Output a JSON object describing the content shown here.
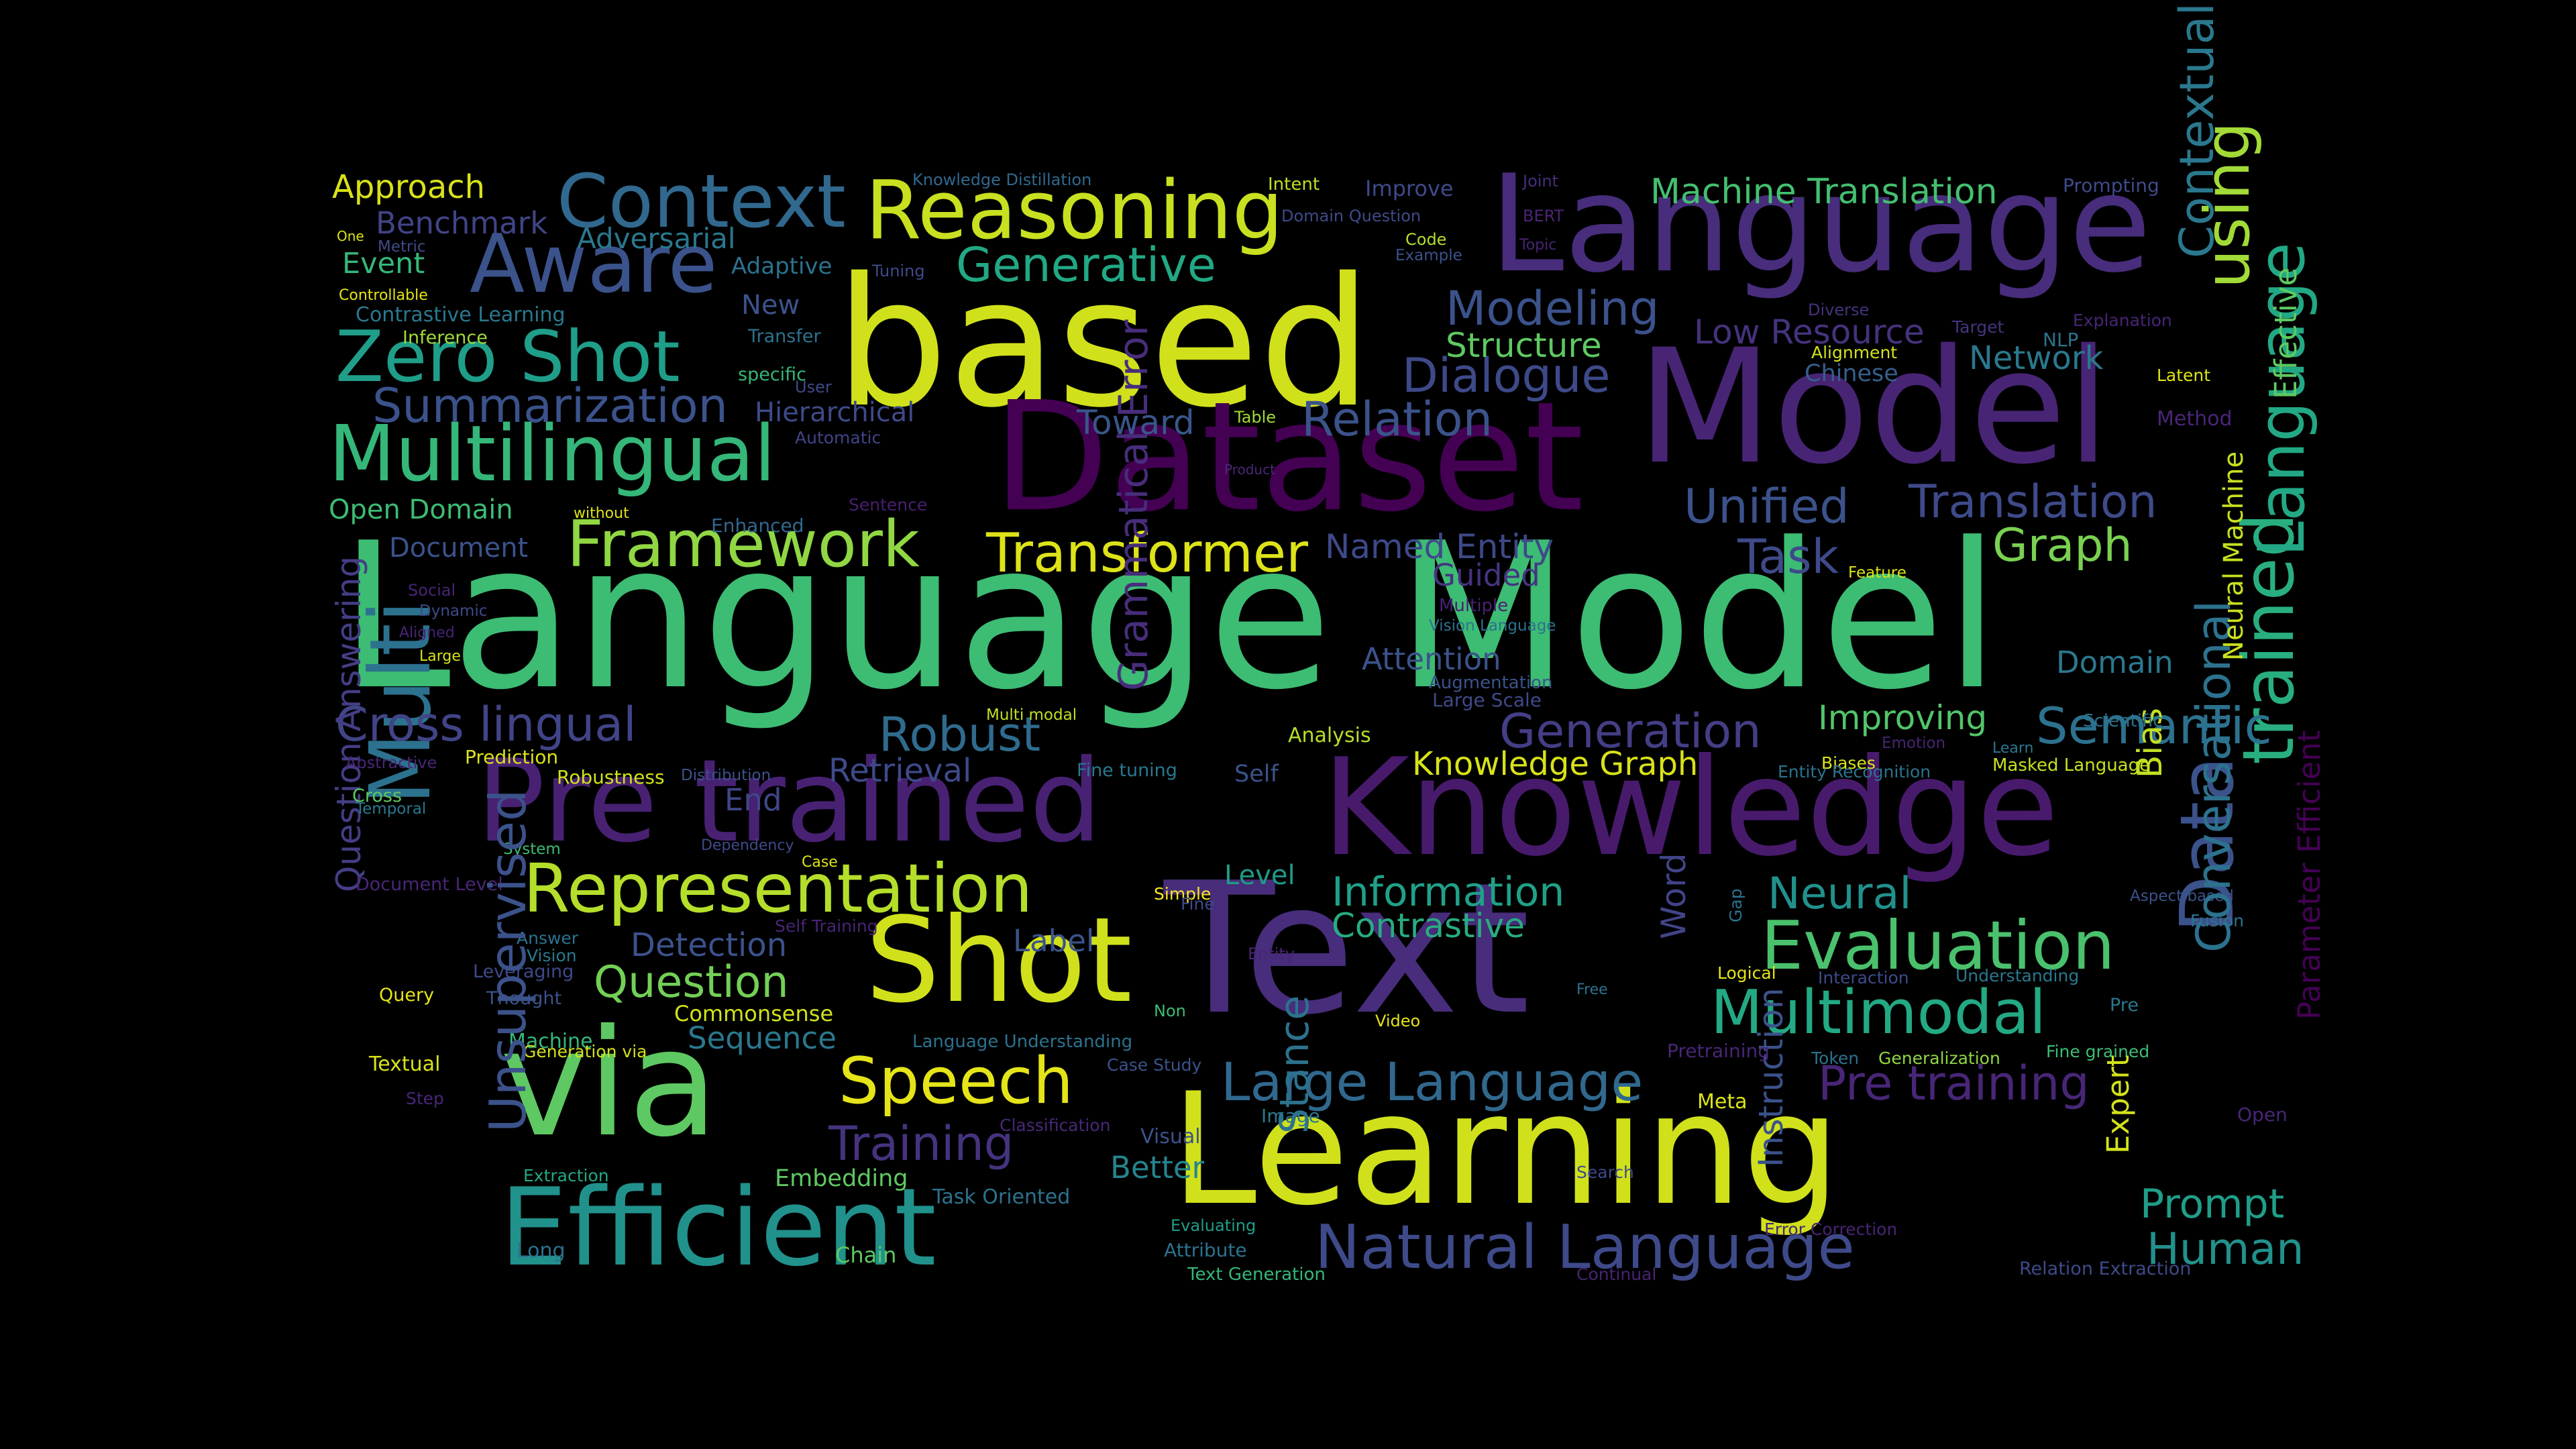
{
  "words": [
    {
      "text": "Language Model",
      "color": "#3dbc74"
    },
    {
      "text": "based",
      "color": "#d0e11c"
    },
    {
      "text": "Text",
      "color": "#472d7b"
    },
    {
      "text": "Learning",
      "color": "#d0e11c"
    },
    {
      "text": "Dataset",
      "color": "#440154"
    },
    {
      "text": "Model",
      "color": "#482475"
    },
    {
      "text": "Language",
      "color": "#472d7b"
    },
    {
      "text": "Knowledge",
      "color": "#481a6c"
    },
    {
      "text": "Pre trained",
      "color": "#482173"
    },
    {
      "text": "via",
      "color": "#5ec962"
    },
    {
      "text": "Multi",
      "color": "#2c728e"
    },
    {
      "text": "Shot",
      "color": "#d0e11c"
    },
    {
      "text": "Efficient",
      "color": "#21918c"
    },
    {
      "text": "Reasoning",
      "color": "#c8e020"
    },
    {
      "text": "Context",
      "color": "#31688e"
    },
    {
      "text": "Aware",
      "color": "#3b528b"
    },
    {
      "text": "Zero Shot",
      "color": "#1f9e89"
    },
    {
      "text": "Multilingual",
      "color": "#35b779"
    },
    {
      "text": "Summarization",
      "color": "#3b528b"
    },
    {
      "text": "Representation",
      "color": "#b5de2b"
    },
    {
      "text": "Framework",
      "color": "#90d743"
    },
    {
      "text": "Transformer",
      "color": "#dde318"
    },
    {
      "text": "Evaluation",
      "color": "#4ac16d"
    },
    {
      "text": "Multimodal",
      "color": "#23a983"
    },
    {
      "text": "Natural Language",
      "color": "#3e4a89"
    },
    {
      "text": "Large Language",
      "color": "#31688e"
    },
    {
      "text": "Speech",
      "color": "#e5e419"
    },
    {
      "text": "Data",
      "color": "#3b528b"
    },
    {
      "text": "trained",
      "color": "#29af7f"
    },
    {
      "text": "Language",
      "color": "#22a884"
    },
    {
      "text": "using",
      "color": "#a2da37"
    },
    {
      "text": "Generative",
      "color": "#22a884"
    },
    {
      "text": "Modeling",
      "color": "#3b528b"
    },
    {
      "text": "Dialogue",
      "color": "#3e4989"
    },
    {
      "text": "Relation",
      "color": "#3b528b"
    },
    {
      "text": "Toward",
      "color": "#39568c"
    },
    {
      "text": "Structure",
      "color": "#5ec962"
    },
    {
      "text": "Low Resource",
      "color": "#46327e"
    },
    {
      "text": "Machine Translation",
      "color": "#44bf70"
    },
    {
      "text": "Network",
      "color": "#2a788e"
    },
    {
      "text": "Chinese",
      "color": "#355f8d"
    },
    {
      "text": "Unified",
      "color": "#3b528b"
    },
    {
      "text": "Translation",
      "color": "#3e4a89"
    },
    {
      "text": "Task",
      "color": "#3e4a89"
    },
    {
      "text": "Graph",
      "color": "#7ad151"
    },
    {
      "text": "Named Entity",
      "color": "#3e4989"
    },
    {
      "text": "Guided",
      "color": "#46337f"
    },
    {
      "text": "Semantic",
      "color": "#2c728e"
    },
    {
      "text": "Improving",
      "color": "#52c569"
    },
    {
      "text": "Generation",
      "color": "#433e85"
    },
    {
      "text": "Knowledge Graph",
      "color": "#d8e219"
    },
    {
      "text": "Domain",
      "color": "#2a788e"
    },
    {
      "text": "Bias",
      "color": "#c2df23"
    },
    {
      "text": "Cross lingual",
      "color": "#414487"
    },
    {
      "text": "Robust",
      "color": "#2f6b8e"
    },
    {
      "text": "Retrieval",
      "color": "#3e4a89"
    },
    {
      "text": "End",
      "color": "#3f4788"
    },
    {
      "text": "Information",
      "color": "#1fa188"
    },
    {
      "text": "Contrastive",
      "color": "#27ad81"
    },
    {
      "text": "Neural",
      "color": "#21918c"
    },
    {
      "text": "Word",
      "color": "#414487"
    },
    {
      "text": "Level",
      "color": "#1f9a8a"
    },
    {
      "text": "Question",
      "color": "#73d056"
    },
    {
      "text": "Detection",
      "color": "#3b528b"
    },
    {
      "text": "Label",
      "color": "#3b528b"
    },
    {
      "text": "Commonsense",
      "color": "#d2e21b"
    },
    {
      "text": "Sequence",
      "color": "#2a788e"
    },
    {
      "text": "Training",
      "color": "#46337f"
    },
    {
      "text": "Better",
      "color": "#25848e"
    },
    {
      "text": "Embedding",
      "color": "#5ec962"
    },
    {
      "text": "Task Oriented",
      "color": "#2c728e"
    },
    {
      "text": "Pre training",
      "color": "#482677"
    },
    {
      "text": "Prompt",
      "color": "#1f9e89"
    },
    {
      "text": "Human",
      "color": "#21918c"
    },
    {
      "text": "Question Answering",
      "color": "#433e85"
    },
    {
      "text": "Approach",
      "color": "#d8e219"
    },
    {
      "text": "Benchmark",
      "color": "#414487"
    },
    {
      "text": "Event",
      "color": "#35b779"
    },
    {
      "text": "Adversarial",
      "color": "#2a788e"
    },
    {
      "text": "Adaptive",
      "color": "#2c728e"
    },
    {
      "text": "Hierarchical",
      "color": "#3e4a89"
    },
    {
      "text": "Open Domain",
      "color": "#3dbc74"
    },
    {
      "text": "Document",
      "color": "#3b528b"
    },
    {
      "text": "Attention",
      "color": "#3b528b"
    },
    {
      "text": "New",
      "color": "#3b528b"
    },
    {
      "text": "Knowledge Distillation",
      "color": "#31688e"
    },
    {
      "text": "Intent",
      "color": "#c2df23"
    },
    {
      "text": "Improve",
      "color": "#3e4a89"
    },
    {
      "text": "Joint",
      "color": "#472d7b"
    },
    {
      "text": "Prompting",
      "color": "#3e4a89"
    },
    {
      "text": "Contextual",
      "color": "#2a788e"
    },
    {
      "text": "Domain Question",
      "color": "#3e4a89"
    },
    {
      "text": "Code",
      "color": "#b5de2b"
    },
    {
      "text": "Example",
      "color": "#3b528b"
    },
    {
      "text": "BERT",
      "color": "#482677"
    },
    {
      "text": "Topic",
      "color": "#482475"
    },
    {
      "text": "Tuning",
      "color": "#3e4a89"
    },
    {
      "text": "Controllable",
      "color": "#e5e419"
    },
    {
      "text": "Contrastive Learning",
      "color": "#2a788e"
    },
    {
      "text": "Inference",
      "color": "#a2da37"
    },
    {
      "text": "Transfer",
      "color": "#2c728e"
    },
    {
      "text": "specific",
      "color": "#35b779"
    },
    {
      "text": "User",
      "color": "#3e4a89"
    },
    {
      "text": "Automatic",
      "color": "#414487"
    },
    {
      "text": "Sentence",
      "color": "#481f70"
    },
    {
      "text": "without",
      "color": "#dde318"
    },
    {
      "text": "Enhanced",
      "color": "#31688e"
    },
    {
      "text": "Table",
      "color": "#a2da37"
    },
    {
      "text": "Product",
      "color": "#482878"
    },
    {
      "text": "Social",
      "color": "#482475"
    },
    {
      "text": "Dynamic",
      "color": "#3e4a89"
    },
    {
      "text": "Aligned",
      "color": "#482475"
    },
    {
      "text": "Large",
      "color": "#d8e219"
    },
    {
      "text": "Multiple",
      "color": "#482173"
    },
    {
      "text": "Vision Language",
      "color": "#2c728e"
    },
    {
      "text": "Augmentation",
      "color": "#3b528b"
    },
    {
      "text": "Large Scale",
      "color": "#3e4a89"
    },
    {
      "text": "Grammatical Error",
      "color": "#472d7b"
    },
    {
      "text": "Multi modal",
      "color": "#c2df23"
    },
    {
      "text": "Analysis",
      "color": "#b5de2b"
    },
    {
      "text": "Abstractive",
      "color": "#482677"
    },
    {
      "text": "Prediction",
      "color": "#dde318"
    },
    {
      "text": "Robustness",
      "color": "#d2e21b"
    },
    {
      "text": "Distribution",
      "color": "#3b528b"
    },
    {
      "text": "Fine tuning",
      "color": "#2a788e"
    },
    {
      "text": "Self",
      "color": "#3b528b"
    },
    {
      "text": "Cross",
      "color": "#5ec962"
    },
    {
      "text": "Temporal",
      "color": "#2a788e"
    },
    {
      "text": "System",
      "color": "#3dbc74"
    },
    {
      "text": "Dependency",
      "color": "#3e4a89"
    },
    {
      "text": "Case",
      "color": "#dde318"
    },
    {
      "text": "Document Level",
      "color": "#482677"
    },
    {
      "text": "Self Training",
      "color": "#482475"
    },
    {
      "text": "Answer",
      "color": "#2c728e"
    },
    {
      "text": "Vision",
      "color": "#2a788e"
    },
    {
      "text": "Leveraging",
      "color": "#3e4a89"
    },
    {
      "text": "Query",
      "color": "#e5e419"
    },
    {
      "text": "Thought",
      "color": "#3b528b"
    },
    {
      "text": "Machine",
      "color": "#35b779"
    },
    {
      "text": "Generation via",
      "color": "#d2e21b"
    },
    {
      "text": "Textual",
      "color": "#d8e219"
    },
    {
      "text": "Step",
      "color": "#482677"
    },
    {
      "text": "Unsupervised",
      "color": "#3b528b"
    },
    {
      "text": "Extraction",
      "color": "#22a884"
    },
    {
      "text": "Long",
      "color": "#2c728e"
    },
    {
      "text": "Chain",
      "color": "#5ec962"
    },
    {
      "text": "Simple",
      "color": "#fde725"
    },
    {
      "text": "Fine",
      "color": "#3e4a89"
    },
    {
      "text": "Entity",
      "color": "#482475"
    },
    {
      "text": "Non",
      "color": "#3dbc74"
    },
    {
      "text": "Language Understanding",
      "color": "#2c728e"
    },
    {
      "text": "Case Study",
      "color": "#3b528b"
    },
    {
      "text": "Classification",
      "color": "#482878"
    },
    {
      "text": "Image",
      "color": "#2a788e"
    },
    {
      "text": "Visual",
      "color": "#3b528b"
    },
    {
      "text": "Stance",
      "color": "#2c728e"
    },
    {
      "text": "Evaluating",
      "color": "#1f9e89"
    },
    {
      "text": "Attribute",
      "color": "#2c728e"
    },
    {
      "text": "Text Generation",
      "color": "#35b779"
    },
    {
      "text": "Video",
      "color": "#e5e419"
    },
    {
      "text": "Free",
      "color": "#2c728e"
    },
    {
      "text": "Search",
      "color": "#3e4a89"
    },
    {
      "text": "Continual",
      "color": "#482475"
    },
    {
      "text": "Meta",
      "color": "#dde318"
    },
    {
      "text": "Instruction",
      "color": "#3b528b"
    },
    {
      "text": "Pretraining",
      "color": "#482677"
    },
    {
      "text": "Gap",
      "color": "#2c728e"
    },
    {
      "text": "Logical",
      "color": "#e5e419"
    },
    {
      "text": "Interaction",
      "color": "#3e4a89"
    },
    {
      "text": "Understanding",
      "color": "#2a788e"
    },
    {
      "text": "Token",
      "color": "#2c728e"
    },
    {
      "text": "Generalization",
      "color": "#90d743"
    },
    {
      "text": "Fine grained",
      "color": "#3dbc74"
    },
    {
      "text": "Pre",
      "color": "#2a788e"
    },
    {
      "text": "Error Correction",
      "color": "#482475"
    },
    {
      "text": "Relation Extraction",
      "color": "#3e4a89"
    },
    {
      "text": "Expert",
      "color": "#d2e21b"
    },
    {
      "text": "Open",
      "color": "#482677"
    },
    {
      "text": "Aspect based",
      "color": "#3b528b"
    },
    {
      "text": "Fusion",
      "color": "#2c728e"
    },
    {
      "text": "Conversational",
      "color": "#2c728e"
    },
    {
      "text": "Parameter Efficient",
      "color": "#440154"
    },
    {
      "text": "Masked Language",
      "color": "#c8e020"
    },
    {
      "text": "Learn",
      "color": "#2a788e"
    },
    {
      "text": "Emotion",
      "color": "#482475"
    },
    {
      "text": "Scientific",
      "color": "#2c728e"
    },
    {
      "text": "Biases",
      "color": "#dde318"
    },
    {
      "text": "Entity Recognition",
      "color": "#2c728e"
    },
    {
      "text": "Feature",
      "color": "#dde318"
    },
    {
      "text": "Neural Machine",
      "color": "#c8e020"
    },
    {
      "text": "Method",
      "color": "#482677"
    },
    {
      "text": "Latent",
      "color": "#dde318"
    },
    {
      "text": "Effective",
      "color": "#5ec962"
    },
    {
      "text": "Explanation",
      "color": "#482475"
    },
    {
      "text": "Target",
      "color": "#46337f"
    },
    {
      "text": "NLP",
      "color": "#2c728e"
    },
    {
      "text": "Alignment",
      "color": "#d2e21b"
    },
    {
      "text": "Diverse",
      "color": "#46327e"
    },
    {
      "text": "One",
      "color": "#dde318"
    },
    {
      "text": "Metric",
      "color": "#3e4a89"
    }
  ]
}
